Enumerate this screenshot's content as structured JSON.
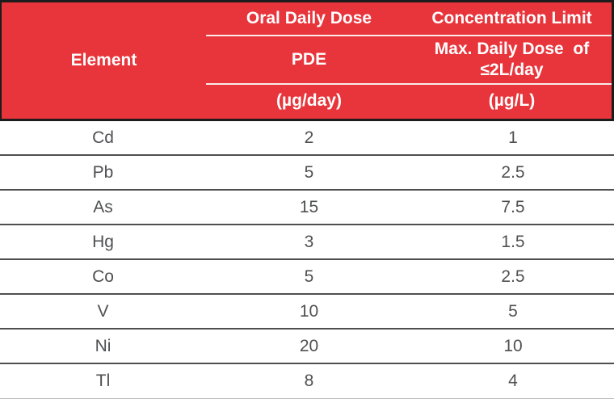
{
  "table": {
    "header": {
      "element": "Element",
      "oral_daily_dose": "Oral Daily Dose",
      "concentration_limit": "Concentration Limit",
      "pde": "PDE",
      "max_daily_dose_line1": "Max. Daily Dose  of",
      "max_daily_dose_line2": "≤2L/day",
      "pde_unit": "(µg/day)",
      "limit_unit": "(µg/L)"
    },
    "rows": [
      {
        "element": "Cd",
        "pde": "2",
        "limit": "1"
      },
      {
        "element": "Pb",
        "pde": "5",
        "limit": "2.5"
      },
      {
        "element": "As",
        "pde": "15",
        "limit": "7.5"
      },
      {
        "element": "Hg",
        "pde": "3",
        "limit": "1.5"
      },
      {
        "element": "Co",
        "pde": "5",
        "limit": "2.5"
      },
      {
        "element": "V",
        "pde": "10",
        "limit": "5"
      },
      {
        "element": "Ni",
        "pde": "20",
        "limit": "10"
      },
      {
        "element": "Tl",
        "pde": "8",
        "limit": "4"
      }
    ]
  },
  "colors": {
    "header_bg": "#e8343b",
    "header_text": "#ffffff",
    "header_rule": "#fbeaea",
    "header_outline": "#1c1c1c",
    "row_divider": "#4f4f4f",
    "body_text": "#4f5052",
    "bottom_rule": "#bdbdbd"
  },
  "chart_data": {
    "type": "table",
    "columns": [
      "Element",
      "Oral Daily Dose — PDE (µg/day)",
      "Concentration Limit — Max. Daily Dose of ≤2L/day (µg/L)"
    ],
    "rows": [
      [
        "Cd",
        2,
        1
      ],
      [
        "Pb",
        5,
        2.5
      ],
      [
        "As",
        15,
        7.5
      ],
      [
        "Hg",
        3,
        1.5
      ],
      [
        "Co",
        5,
        2.5
      ],
      [
        "V",
        10,
        5
      ],
      [
        "Ni",
        20,
        10
      ],
      [
        "Tl",
        8,
        4
      ]
    ]
  }
}
